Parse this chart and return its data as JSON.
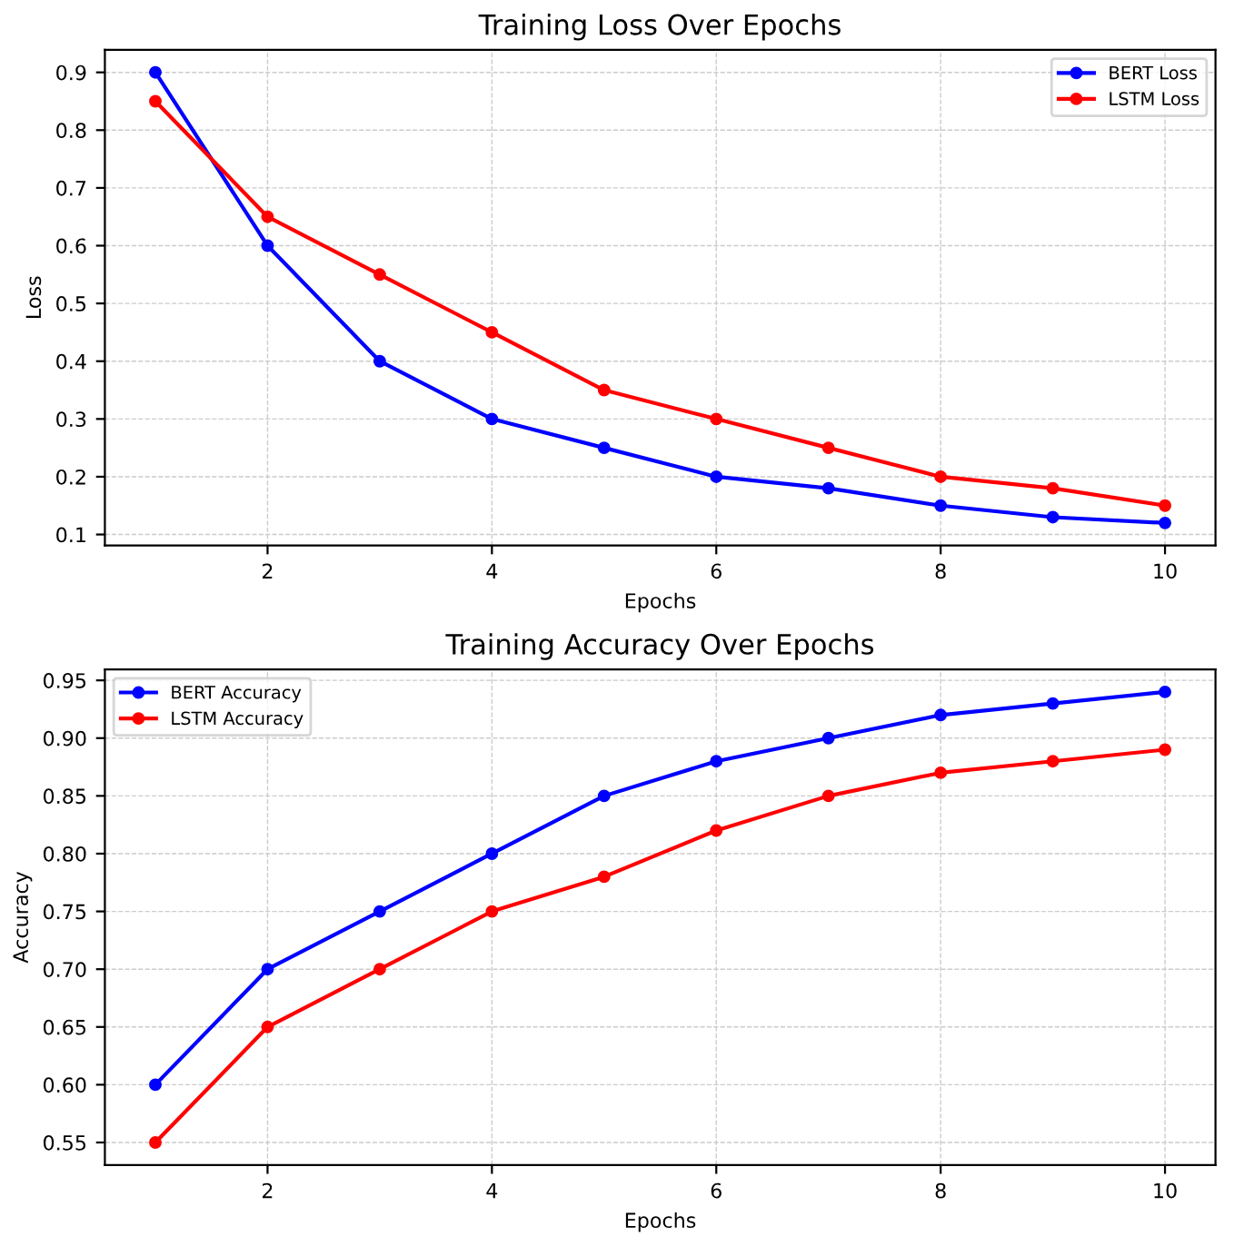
{
  "chart_data": [
    {
      "type": "line",
      "title": "Training Loss Over Epochs",
      "xlabel": "Epochs",
      "ylabel": "Loss",
      "x": [
        1,
        2,
        3,
        4,
        5,
        6,
        7,
        8,
        9,
        10
      ],
      "series": [
        {
          "name": "BERT Loss",
          "color": "#0000ff",
          "values": [
            0.9,
            0.6,
            0.4,
            0.3,
            0.25,
            0.2,
            0.18,
            0.15,
            0.13,
            0.12
          ]
        },
        {
          "name": "LSTM Loss",
          "color": "#ff0000",
          "values": [
            0.85,
            0.65,
            0.55,
            0.45,
            0.35,
            0.3,
            0.25,
            0.2,
            0.18,
            0.15
          ]
        }
      ],
      "xlim": [
        0.55,
        10.45
      ],
      "xticks": [
        2,
        4,
        6,
        8,
        10
      ],
      "ylim": [
        0.081,
        0.939
      ],
      "yticks": [
        0.1,
        0.2,
        0.3,
        0.4,
        0.5,
        0.6,
        0.7,
        0.8,
        0.9
      ],
      "grid": true,
      "legend": "top right",
      "marker": "circle",
      "line_style": "solid"
    },
    {
      "type": "line",
      "title": "Training Accuracy Over Epochs",
      "xlabel": "Epochs",
      "ylabel": "Accuracy",
      "x": [
        1,
        2,
        3,
        4,
        5,
        6,
        7,
        8,
        9,
        10
      ],
      "series": [
        {
          "name": "BERT Accuracy",
          "color": "#0000ff",
          "values": [
            0.6,
            0.7,
            0.75,
            0.8,
            0.85,
            0.88,
            0.9,
            0.92,
            0.93,
            0.94
          ]
        },
        {
          "name": "LSTM Accuracy",
          "color": "#ff0000",
          "values": [
            0.55,
            0.65,
            0.7,
            0.75,
            0.78,
            0.82,
            0.85,
            0.87,
            0.88,
            0.89
          ]
        }
      ],
      "xlim": [
        0.55,
        10.45
      ],
      "xticks": [
        2,
        4,
        6,
        8,
        10
      ],
      "ylim": [
        0.5305,
        0.9595
      ],
      "yticks": [
        {
          "value": 0.55,
          "label": "0.55"
        },
        {
          "value": 0.6,
          "label": "0.60"
        },
        {
          "value": 0.65,
          "label": "0.65"
        },
        {
          "value": 0.7,
          "label": "0.70"
        },
        {
          "value": 0.75,
          "label": "0.75"
        },
        {
          "value": 0.8,
          "label": "0.80"
        },
        {
          "value": 0.85,
          "label": "0.85"
        },
        {
          "value": 0.9,
          "label": "0.90"
        },
        {
          "value": 0.95,
          "label": "0.95"
        }
      ],
      "grid": true,
      "legend": "top left",
      "marker": "circle",
      "line_style": "solid"
    }
  ]
}
